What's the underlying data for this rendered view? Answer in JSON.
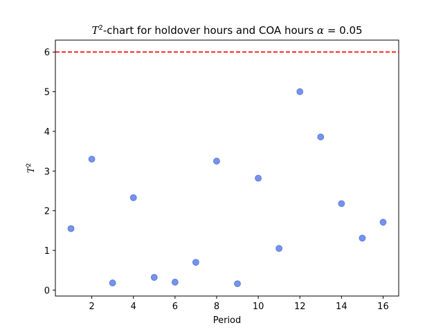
{
  "chart_data": {
    "type": "scatter",
    "title": {
      "lead_var": "T",
      "lead_sup": "2",
      "text": "-chart for holdover hours and COA hours ",
      "alpha_var": "α",
      "alpha_value": " = 0.05"
    },
    "xlabel": "Period",
    "ylabel": {
      "var": "T",
      "sup": "2"
    },
    "xlim": [
      0.25,
      16.75
    ],
    "ylim": [
      -0.15,
      6.3
    ],
    "xticks": [
      2,
      4,
      6,
      8,
      10,
      12,
      14,
      16
    ],
    "yticks": [
      0,
      1,
      2,
      3,
      4,
      5,
      6
    ],
    "control_limit": {
      "y": 6,
      "color": "#ff0000",
      "style": "dashed"
    },
    "point_color": "#4169e1",
    "grid": false,
    "x": [
      1,
      2,
      3,
      4,
      5,
      6,
      7,
      8,
      9,
      10,
      11,
      12,
      13,
      14,
      15,
      16
    ],
    "y": [
      1.55,
      3.3,
      0.18,
      2.33,
      0.32,
      0.2,
      0.7,
      3.25,
      0.16,
      2.82,
      1.05,
      5.0,
      3.86,
      2.18,
      1.31,
      1.71
    ]
  }
}
